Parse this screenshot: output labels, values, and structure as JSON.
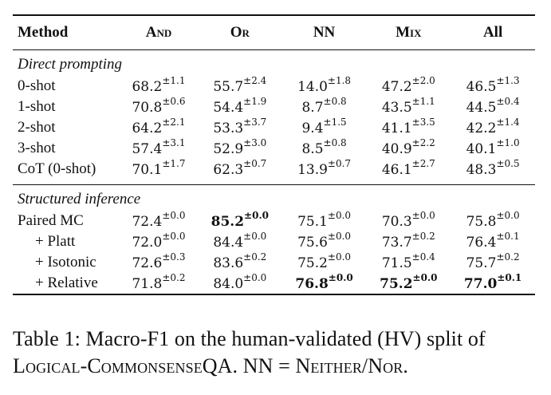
{
  "table": {
    "headers": [
      "Method",
      "And",
      "Or",
      "NN",
      "Mix",
      "All"
    ],
    "sections": [
      {
        "title": "Direct prompting",
        "rows": [
          {
            "method": "0-shot",
            "indent": false,
            "cells": [
              {
                "v": "68.2",
                "sd": "±1.1"
              },
              {
                "v": "55.7",
                "sd": "±2.4"
              },
              {
                "v": "14.0",
                "sd": "±1.8"
              },
              {
                "v": "47.2",
                "sd": "±2.0"
              },
              {
                "v": "46.5",
                "sd": "±1.3"
              }
            ]
          },
          {
            "method": "1-shot",
            "indent": false,
            "cells": [
              {
                "v": "70.8",
                "sd": "±0.6"
              },
              {
                "v": "54.4",
                "sd": "±1.9"
              },
              {
                "v": "8.7",
                "sd": "±0.8"
              },
              {
                "v": "43.5",
                "sd": "±1.1"
              },
              {
                "v": "44.5",
                "sd": "±0.4"
              }
            ]
          },
          {
            "method": "2-shot",
            "indent": false,
            "cells": [
              {
                "v": "64.2",
                "sd": "±2.1"
              },
              {
                "v": "53.3",
                "sd": "±3.7"
              },
              {
                "v": "9.4",
                "sd": "±1.5"
              },
              {
                "v": "41.1",
                "sd": "±3.5"
              },
              {
                "v": "42.2",
                "sd": "±1.4"
              }
            ]
          },
          {
            "method": "3-shot",
            "indent": false,
            "cells": [
              {
                "v": "57.4",
                "sd": "±3.1"
              },
              {
                "v": "52.9",
                "sd": "±3.0"
              },
              {
                "v": "8.5",
                "sd": "±0.8"
              },
              {
                "v": "40.9",
                "sd": "±2.2"
              },
              {
                "v": "40.1",
                "sd": "±1.0"
              }
            ]
          },
          {
            "method": "CoT (0-shot)",
            "indent": false,
            "cells": [
              {
                "v": "70.1",
                "sd": "±1.7"
              },
              {
                "v": "62.3",
                "sd": "±0.7"
              },
              {
                "v": "13.9",
                "sd": "±0.7"
              },
              {
                "v": "46.1",
                "sd": "±2.7"
              },
              {
                "v": "48.3",
                "sd": "±0.5"
              }
            ]
          }
        ]
      },
      {
        "title": "Structured inference",
        "rows": [
          {
            "method": "Paired MC",
            "indent": false,
            "cells": [
              {
                "v": "72.4",
                "sd": "±0.0"
              },
              {
                "v": "85.2",
                "sd": "±0.0",
                "bold": true
              },
              {
                "v": "75.1",
                "sd": "±0.0"
              },
              {
                "v": "70.3",
                "sd": "±0.0"
              },
              {
                "v": "75.8",
                "sd": "±0.0"
              }
            ]
          },
          {
            "method": "+ Platt",
            "indent": true,
            "cells": [
              {
                "v": "72.0",
                "sd": "±0.0"
              },
              {
                "v": "84.4",
                "sd": "±0.0"
              },
              {
                "v": "75.6",
                "sd": "±0.0"
              },
              {
                "v": "73.7",
                "sd": "±0.2"
              },
              {
                "v": "76.4",
                "sd": "±0.1"
              }
            ]
          },
          {
            "method": "+ Isotonic",
            "indent": true,
            "cells": [
              {
                "v": "72.6",
                "sd": "±0.3"
              },
              {
                "v": "83.6",
                "sd": "±0.2"
              },
              {
                "v": "75.2",
                "sd": "±0.0"
              },
              {
                "v": "71.5",
                "sd": "±0.4"
              },
              {
                "v": "75.7",
                "sd": "±0.2"
              }
            ]
          },
          {
            "method": "+ Relative",
            "indent": true,
            "cells": [
              {
                "v": "71.8",
                "sd": "±0.2"
              },
              {
                "v": "84.0",
                "sd": "±0.0"
              },
              {
                "v": "76.8",
                "sd": "±0.0",
                "bold": true
              },
              {
                "v": "75.2",
                "sd": "±0.0",
                "bold": true
              },
              {
                "v": "77.0",
                "sd": "±0.1",
                "bold": true
              }
            ]
          }
        ]
      }
    ]
  },
  "caption": {
    "line1": "Table 1: Macro-F1 on the human-validated (HV) split of",
    "line2": "Logical-CommonsenseQA. NN = Neither/Nor."
  }
}
